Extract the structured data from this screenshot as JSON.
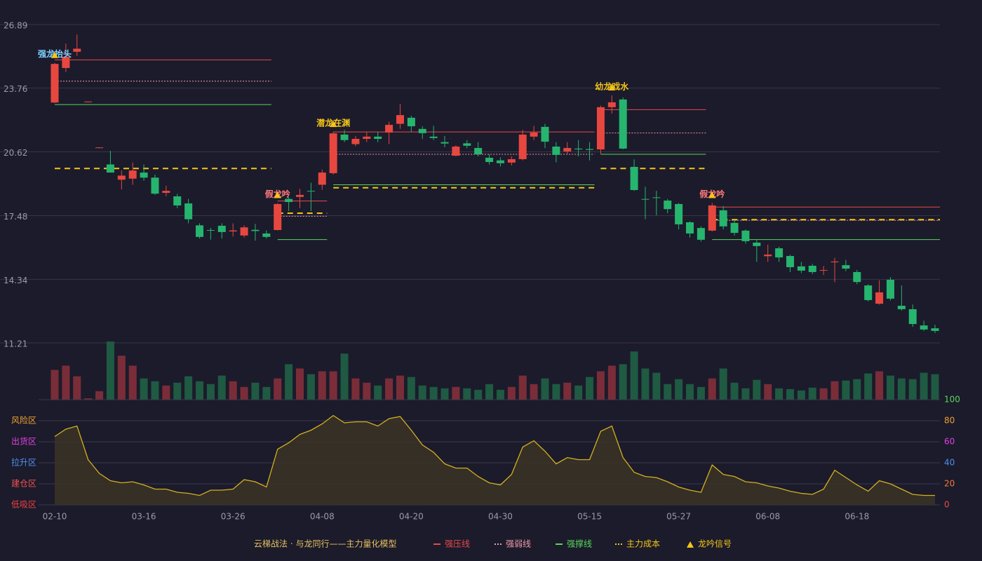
{
  "chart_data": {
    "type": "candlestick",
    "categories": [
      "02-10",
      null,
      null,
      null,
      null,
      null,
      null,
      null,
      "03-16",
      null,
      null,
      null,
      null,
      null,
      null,
      null,
      "03-26",
      null,
      null,
      null,
      null,
      null,
      null,
      null,
      "04-08",
      null,
      null,
      null,
      null,
      null,
      null,
      null,
      "04-20",
      null,
      null,
      null,
      null,
      null,
      null,
      null,
      "04-30",
      null,
      null,
      null,
      null,
      null,
      null,
      null,
      "05-15",
      null,
      null,
      null,
      null,
      null,
      null,
      null,
      "05-27",
      null,
      null,
      null,
      null,
      null,
      null,
      null,
      "06-08",
      null,
      null,
      null,
      null,
      null,
      null,
      null,
      "06-18",
      null,
      null,
      null,
      null,
      null,
      null,
      null
    ],
    "open": [
      23.05,
      24.75,
      25.55,
      23.08,
      20.82,
      20.0,
      19.25,
      19.3,
      19.6,
      19.35,
      18.6,
      18.43,
      18.08,
      17.0,
      16.77,
      16.98,
      16.7,
      16.5,
      16.78,
      16.6,
      16.77,
      18.3,
      18.4,
      18.7,
      19.0,
      19.57,
      21.47,
      21.0,
      21.26,
      21.37,
      21.57,
      22.0,
      22.3,
      21.75,
      21.37,
      21.1,
      20.43,
      21.04,
      20.81,
      20.33,
      20.2,
      20.09,
      20.26,
      21.37,
      21.85,
      20.88,
      20.64,
      20.78,
      20.76,
      20.74,
      22.82,
      23.2,
      19.88,
      18.3,
      18.38,
      18.22,
      18.05,
      17.15,
      16.87,
      16.74,
      17.74,
      17.12,
      16.74,
      16.15,
      15.48,
      15.87,
      15.49,
      14.98,
      15.01,
      14.77,
      15.18,
      15.04,
      14.7,
      14.04,
      13.14,
      14.32,
      13.04,
      12.87,
      12.07,
      11.93
    ],
    "high": [
      25.0,
      25.95,
      26.4,
      23.1,
      20.84,
      20.67,
      19.7,
      20.1,
      20.0,
      19.5,
      18.95,
      18.55,
      18.3,
      17.1,
      16.88,
      17.1,
      17.1,
      17.0,
      17.07,
      16.75,
      18.1,
      18.4,
      18.8,
      19.1,
      19.75,
      21.6,
      21.7,
      21.4,
      21.6,
      21.6,
      22.1,
      22.98,
      22.4,
      21.88,
      21.9,
      21.4,
      20.95,
      21.2,
      21.1,
      20.5,
      20.35,
      20.4,
      21.7,
      21.9,
      22.0,
      21.1,
      21.1,
      21.2,
      21.1,
      22.9,
      23.4,
      23.3,
      20.25,
      18.9,
      18.7,
      18.3,
      18.1,
      17.2,
      16.95,
      18.1,
      17.95,
      17.25,
      16.8,
      16.3,
      16.05,
      15.95,
      15.55,
      15.2,
      15.1,
      15.0,
      15.4,
      15.3,
      14.8,
      14.1,
      14.3,
      14.45,
      14.04,
      13.1,
      12.3,
      12.1
    ],
    "low": [
      23.02,
      24.55,
      25.35,
      23.06,
      20.8,
      19.6,
      18.77,
      19.0,
      19.2,
      18.5,
      18.43,
      17.85,
      17.1,
      16.35,
      16.3,
      16.35,
      16.45,
      16.4,
      16.25,
      16.35,
      16.75,
      17.7,
      17.85,
      17.7,
      18.75,
      19.5,
      21.1,
      20.9,
      21.1,
      21.1,
      21.0,
      21.75,
      21.6,
      21.25,
      21.2,
      20.85,
      20.4,
      20.8,
      20.4,
      20.0,
      19.9,
      19.95,
      20.2,
      21.2,
      20.8,
      20.1,
      20.5,
      20.4,
      20.2,
      20.5,
      22.5,
      20.75,
      18.7,
      17.3,
      17.5,
      17.6,
      16.8,
      16.4,
      16.2,
      16.7,
      16.8,
      16.5,
      16.1,
      15.2,
      15.2,
      15.2,
      14.7,
      14.65,
      14.6,
      14.55,
      14.2,
      14.75,
      14.1,
      13.25,
      13.1,
      13.3,
      12.8,
      12.0,
      11.8,
      11.7
    ],
    "close": [
      24.95,
      25.3,
      25.7,
      23.1,
      20.84,
      19.6,
      19.45,
      19.7,
      19.35,
      18.56,
      18.7,
      17.98,
      17.3,
      16.43,
      16.74,
      16.67,
      16.75,
      16.9,
      16.72,
      16.43,
      18.05,
      18.15,
      18.5,
      18.68,
      19.6,
      21.53,
      21.2,
      21.26,
      21.37,
      21.26,
      21.95,
      22.43,
      21.88,
      21.54,
      21.3,
      21.03,
      20.88,
      20.92,
      20.5,
      20.12,
      20.06,
      20.26,
      21.47,
      21.57,
      21.12,
      20.47,
      20.81,
      20.74,
      20.72,
      22.82,
      23.06,
      20.78,
      18.74,
      18.28,
      18.36,
      17.8,
      17.05,
      16.6,
      16.29,
      17.98,
      16.95,
      16.63,
      16.22,
      15.98,
      15.56,
      15.42,
      14.94,
      14.77,
      14.7,
      14.8,
      15.22,
      14.87,
      14.21,
      13.32,
      13.7,
      13.39,
      12.87,
      12.14,
      11.87,
      11.8
    ],
    "up_color": "#e8473f",
    "down_color": "#26b56e",
    "ylim": [
      11.21,
      26.89
    ],
    "yticks": [
      11.21,
      14.34,
      17.48,
      20.62,
      23.76,
      26.89
    ],
    "grid": true,
    "volume": [
      42,
      48,
      33,
      2,
      12,
      82,
      62,
      48,
      30,
      26,
      20,
      24,
      33,
      26,
      22,
      34,
      26,
      18,
      24,
      18,
      30,
      50,
      44,
      36,
      40,
      40,
      65,
      30,
      24,
      20,
      30,
      34,
      32,
      20,
      18,
      16,
      18,
      16,
      14,
      22,
      14,
      18,
      34,
      22,
      30,
      22,
      24,
      20,
      32,
      40,
      48,
      50,
      68,
      44,
      38,
      22,
      29,
      22,
      18,
      30,
      44,
      24,
      16,
      28,
      22,
      16,
      15,
      13,
      17,
      16,
      26,
      27,
      29,
      37,
      40,
      34,
      30,
      29,
      38,
      36
    ],
    "volume_up_color": "#7a2d38",
    "volume_down_color": "#1f5a42",
    "levels": [
      {
        "name": "强压线",
        "color": "#e84a4a",
        "style": "solid",
        "segments": [
          {
            "start": 0,
            "end": 19,
            "value": 25.15
          },
          {
            "start": 20,
            "end": 24,
            "value": 18.2
          },
          {
            "start": 25,
            "end": 48,
            "value": 21.6
          },
          {
            "start": 49,
            "end": 58,
            "value": 22.7
          },
          {
            "start": 59,
            "end": 79,
            "value": 17.9
          }
        ]
      },
      {
        "name": "强弱线",
        "color": "#f59aa8",
        "style": "dotted",
        "segments": [
          {
            "start": 0,
            "end": 19,
            "value": 24.1
          },
          {
            "start": 20,
            "end": 24,
            "value": 17.45
          },
          {
            "start": 25,
            "end": 48,
            "value": 20.5
          },
          {
            "start": 49,
            "end": 58,
            "value": 21.55
          },
          {
            "start": 59,
            "end": 79,
            "value": 17.25
          }
        ]
      },
      {
        "name": "强撑线",
        "color": "#5ad65a",
        "style": "solid",
        "segments": [
          {
            "start": 0,
            "end": 19,
            "value": 22.95
          },
          {
            "start": 20,
            "end": 24,
            "value": 16.3
          },
          {
            "start": 25,
            "end": 48,
            "value": 19.0
          },
          {
            "start": 49,
            "end": 58,
            "value": 20.5
          },
          {
            "start": 59,
            "end": 79,
            "value": 16.3
          }
        ]
      },
      {
        "name": "主力成本",
        "color": "#f5c518",
        "style": "dashed",
        "segments": [
          {
            "start": 0,
            "end": 19,
            "value": 19.8
          },
          {
            "start": 20,
            "end": 24,
            "value": 17.6
          },
          {
            "start": 25,
            "end": 48,
            "value": 18.85
          },
          {
            "start": 49,
            "end": 58,
            "value": 19.8
          },
          {
            "start": 59,
            "end": 79,
            "value": 17.28
          }
        ]
      }
    ],
    "signals": {
      "name": "龙吟信号",
      "color": "#f5c518",
      "points": [
        {
          "index": 0,
          "label": "强龙抬头",
          "color": "#7fd0ff"
        },
        {
          "index": 20,
          "label": "假龙吟",
          "color": "#ff7a7a"
        },
        {
          "index": 25,
          "label": "潜龙在渊",
          "color": "#f5c518"
        },
        {
          "index": 50,
          "label": "幼龙戏水",
          "color": "#f5c518"
        },
        {
          "index": 59,
          "label": "假龙吟",
          "color": "#ff7a7a"
        }
      ]
    },
    "indicator": {
      "values": [
        65,
        72,
        75,
        43,
        30,
        23,
        21,
        22,
        19,
        15,
        15,
        12,
        11,
        9,
        14,
        14,
        15,
        24,
        22,
        17,
        53,
        59,
        67,
        71,
        77,
        85,
        78,
        79,
        79,
        75,
        82,
        84,
        71,
        57,
        50,
        39,
        35,
        35,
        27,
        21,
        19,
        29,
        55,
        61,
        51,
        39,
        45,
        43,
        43,
        70,
        75,
        45,
        31,
        27,
        26,
        22,
        17,
        14,
        12,
        38,
        29,
        27,
        22,
        21,
        18,
        16,
        13,
        11,
        10,
        15,
        33,
        26,
        19,
        13,
        23,
        20,
        15,
        10,
        9,
        9
      ],
      "color": "#d4b020",
      "fill": "#3a3326",
      "ylim": [
        0,
        100
      ],
      "yticks": [
        0,
        20,
        40,
        60,
        80,
        100
      ],
      "ytick_colors": [
        "#e84a4a",
        "#f07a40",
        "#5090f0",
        "#e040e0",
        "#f0a030",
        "#5cd65c"
      ],
      "zones": [
        {
          "label": "风险区",
          "value": 80,
          "color": "#f0a030"
        },
        {
          "label": "出货区",
          "value": 60,
          "color": "#e040e0"
        },
        {
          "label": "拉升区",
          "value": 40,
          "color": "#5090f0"
        },
        {
          "label": "建仓区",
          "value": 20,
          "color": "#f05050"
        },
        {
          "label": "低吸区",
          "value": 0,
          "color": "#f04040"
        }
      ]
    },
    "legend_title": "云梯战法 · 与龙同行——主力量化模型"
  }
}
